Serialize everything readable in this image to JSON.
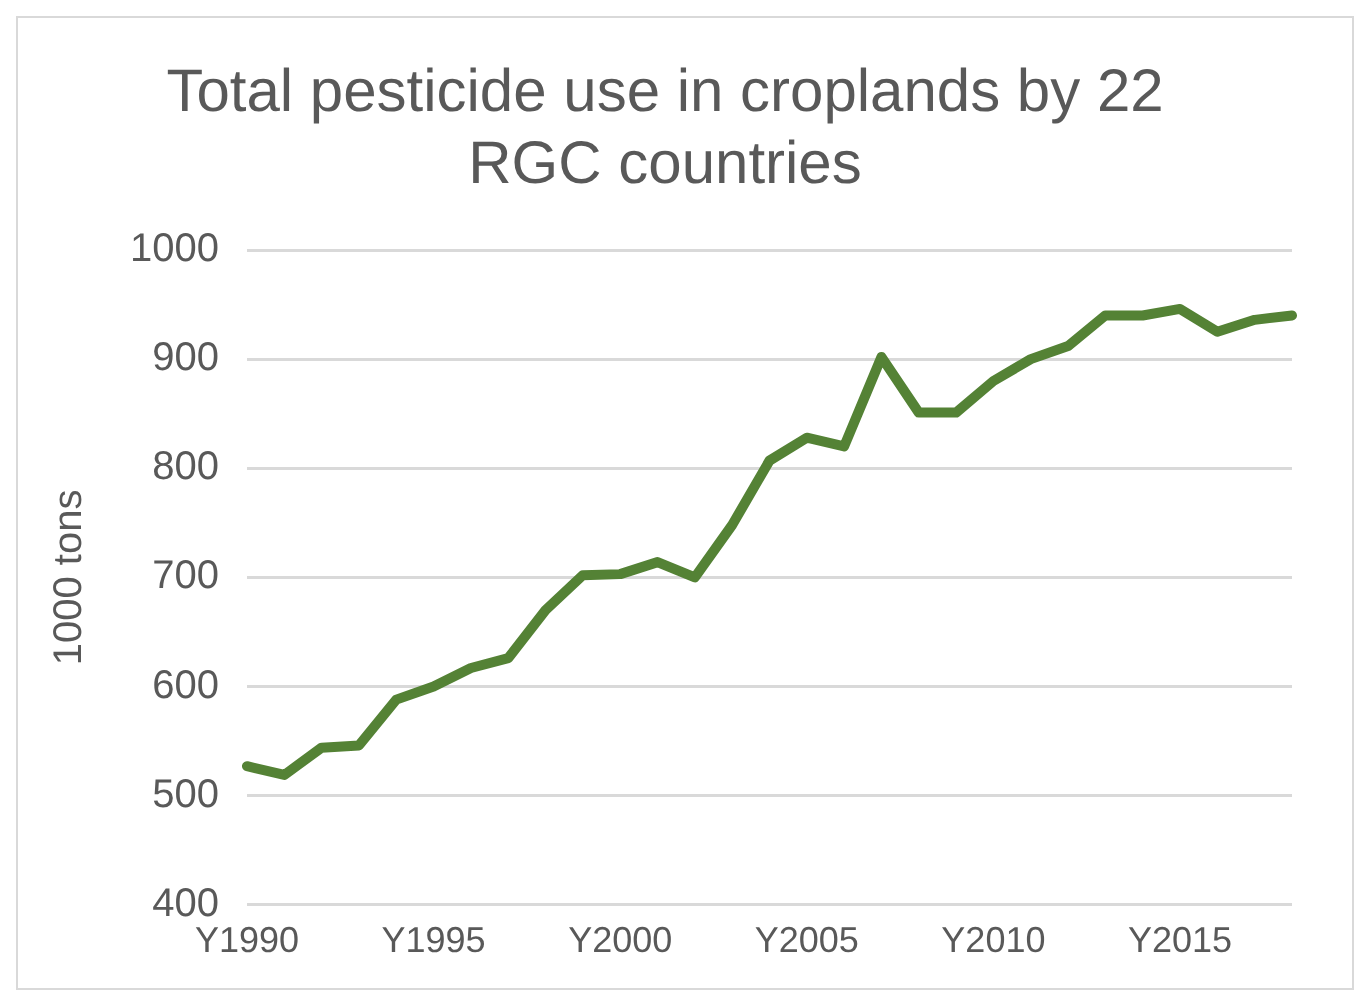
{
  "chart_data": {
    "type": "line",
    "title": "Total pesticide use in croplands by 22 RGC countries",
    "ylabel": "1000 tons",
    "categories": [
      "Y1990",
      null,
      null,
      null,
      null,
      "Y1995",
      null,
      null,
      null,
      null,
      "Y2000",
      null,
      null,
      null,
      null,
      "Y2005",
      null,
      null,
      null,
      null,
      "Y2010",
      null,
      null,
      null,
      null,
      "Y2015",
      null,
      null,
      null
    ],
    "series": [
      {
        "color": "#548235",
        "values": [
          527,
          519,
          544,
          546,
          588,
          600,
          617,
          626,
          670,
          702,
          703,
          714,
          700,
          748,
          807,
          828,
          820,
          902,
          851,
          851,
          880,
          900,
          912,
          940,
          940,
          946,
          925,
          936,
          940
        ]
      }
    ],
    "ylim": [
      400,
      1000
    ],
    "yticks": [
      400,
      500,
      600,
      700,
      800,
      900,
      1000
    ],
    "grid": "y",
    "legend": false,
    "marker": "none",
    "line_style": "solid"
  }
}
